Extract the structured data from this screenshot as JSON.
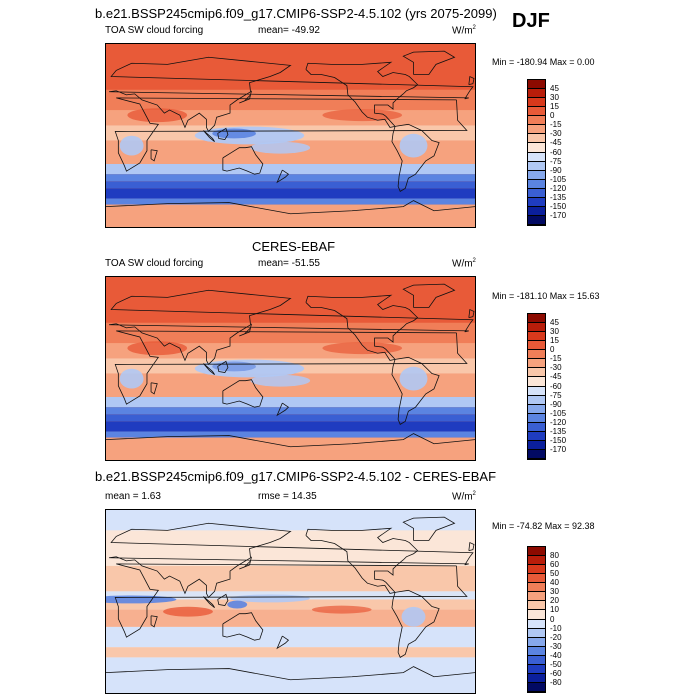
{
  "season": "DJF",
  "chart_data": [
    {
      "type": "heatmap",
      "title": "b.e21.BSSP245cmip6.f09_g17.CMIP6-SSP2-4.5.102 (yrs 2075-2099)",
      "variable": "TOA SW cloud forcing",
      "mean_label": "mean= -49.92",
      "units": "W/m",
      "units_exp": "2",
      "minmax": "Min = -180.94  Max =   0.00",
      "min": -180.94,
      "max": 0.0,
      "mean": -49.92,
      "colorbar_levels": [
        "45",
        "30",
        "15",
        "0",
        "-15",
        "-30",
        "-45",
        "-60",
        "-75",
        "-90",
        "-105",
        "-120",
        "-135",
        "-150",
        "-170"
      ],
      "colorbar_colors": [
        "#8c0a00",
        "#b81d0a",
        "#d8391c",
        "#e85a38",
        "#f07e58",
        "#f6a27e",
        "#f9c7aa",
        "#fbe6d8",
        "#d6e3fa",
        "#b0c8f4",
        "#86a8ec",
        "#5b84e1",
        "#3a5fd3",
        "#1f3cc0",
        "#0b1f9c",
        "#020a63"
      ]
    },
    {
      "type": "heatmap",
      "title": "CERES-EBAF",
      "variable": "TOA SW cloud forcing",
      "mean_label": "mean= -51.55",
      "units": "W/m",
      "units_exp": "2",
      "minmax": "Min = -181.10  Max =  15.63",
      "min": -181.1,
      "max": 15.63,
      "mean": -51.55,
      "colorbar_levels": [
        "45",
        "30",
        "15",
        "0",
        "-15",
        "-30",
        "-45",
        "-60",
        "-75",
        "-90",
        "-105",
        "-120",
        "-135",
        "-150",
        "-170"
      ],
      "colorbar_colors": [
        "#8c0a00",
        "#b81d0a",
        "#d8391c",
        "#e85a38",
        "#f07e58",
        "#f6a27e",
        "#f9c7aa",
        "#fbe6d8",
        "#d6e3fa",
        "#b0c8f4",
        "#86a8ec",
        "#5b84e1",
        "#3a5fd3",
        "#1f3cc0",
        "#0b1f9c",
        "#020a63"
      ]
    },
    {
      "type": "heatmap",
      "title": "b.e21.BSSP245cmip6.f09_g17.CMIP6-SSP2-4.5.102 - CERES-EBAF",
      "mean_label": "mean =   1.63",
      "rmse_label": "rmse =  14.35",
      "units": "W/m",
      "units_exp": "2",
      "minmax": "Min = -74.82  Max =  92.38",
      "min": -74.82,
      "max": 92.38,
      "mean": 1.63,
      "rmse": 14.35,
      "colorbar_levels": [
        "80",
        "60",
        "50",
        "40",
        "30",
        "20",
        "10",
        "0",
        "-10",
        "-20",
        "-30",
        "-40",
        "-50",
        "-60",
        "-80"
      ],
      "colorbar_colors": [
        "#8c0a00",
        "#b81d0a",
        "#d8391c",
        "#e85a38",
        "#f07e58",
        "#f6a27e",
        "#f9c7aa",
        "#fbe6d8",
        "#d6e3fa",
        "#b0c8f4",
        "#86a8ec",
        "#5b84e1",
        "#3a5fd3",
        "#1f3cc0",
        "#0b1f9c",
        "#020a63"
      ]
    }
  ]
}
